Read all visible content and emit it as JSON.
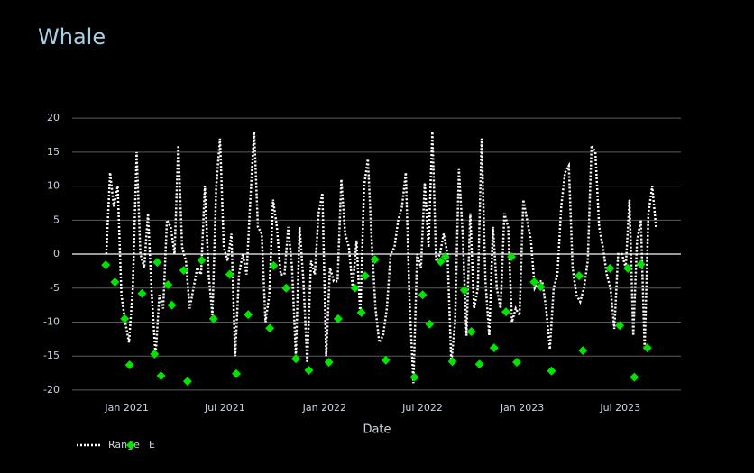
{
  "chart_data": {
    "type": "line",
    "title": "Whale",
    "x_label": "Date",
    "xlim": [
      "2020-09-22",
      "2023-10-21"
    ],
    "xticks": [
      {
        "value": "2021-01-01",
        "label": "Jan 2021"
      },
      {
        "value": "2021-07-01",
        "label": "Jul 2021"
      },
      {
        "value": "2022-01-01",
        "label": "Jan 2022"
      },
      {
        "value": "2022-07-01",
        "label": "Jul 2022"
      },
      {
        "value": "2023-01-01",
        "label": "Jan 2023"
      },
      {
        "value": "2023-07-01",
        "label": "Jul 2023"
      }
    ],
    "ylim": [
      -22,
      24
    ],
    "yticks": [
      -20,
      -15,
      -10,
      -5,
      0,
      5,
      10,
      15,
      20
    ],
    "grid": true,
    "legend": "bottom-left",
    "series": [
      {
        "name": "Range",
        "mode": "lines",
        "dash": "dot",
        "color": "#ffffff",
        "x": [
          "2020-11-24",
          "2020-12-01",
          "2020-12-08",
          "2020-12-15",
          "2020-12-22",
          "2020-12-29",
          "2021-01-05",
          "2021-01-12",
          "2021-01-19",
          "2021-01-26",
          "2021-02-02",
          "2021-02-09",
          "2021-02-16",
          "2021-02-23",
          "2021-03-02",
          "2021-03-09",
          "2021-03-16",
          "2021-03-23",
          "2021-03-30",
          "2021-04-06",
          "2021-04-13",
          "2021-04-20",
          "2021-04-27",
          "2021-05-04",
          "2021-05-11",
          "2021-05-18",
          "2021-05-25",
          "2021-06-01",
          "2021-06-08",
          "2021-06-15",
          "2021-06-22",
          "2021-06-29",
          "2021-07-06",
          "2021-07-13",
          "2021-07-20",
          "2021-07-27",
          "2021-08-03",
          "2021-08-10",
          "2021-08-17",
          "2021-08-24",
          "2021-08-31",
          "2021-09-07",
          "2021-09-14",
          "2021-09-21",
          "2021-09-28",
          "2021-10-05",
          "2021-10-12",
          "2021-10-19",
          "2021-10-26",
          "2021-11-02",
          "2021-11-09",
          "2021-11-16",
          "2021-11-23",
          "2021-11-30",
          "2021-12-07",
          "2021-12-14",
          "2021-12-21",
          "2021-12-28",
          "2022-01-04",
          "2022-01-11",
          "2022-01-18",
          "2022-01-25",
          "2022-02-01",
          "2022-02-08",
          "2022-02-15",
          "2022-02-22",
          "2022-03-01",
          "2022-03-08",
          "2022-03-15",
          "2022-03-22",
          "2022-03-29",
          "2022-04-05",
          "2022-04-12",
          "2022-04-19",
          "2022-04-26",
          "2022-05-03",
          "2022-05-10",
          "2022-05-17",
          "2022-05-24",
          "2022-05-31",
          "2022-06-07",
          "2022-06-14",
          "2022-06-21",
          "2022-06-28",
          "2022-07-05",
          "2022-07-12",
          "2022-07-19",
          "2022-07-26",
          "2022-08-02",
          "2022-08-09",
          "2022-08-16",
          "2022-08-23",
          "2022-08-30",
          "2022-09-06",
          "2022-09-13",
          "2022-09-20",
          "2022-09-27",
          "2022-10-04",
          "2022-10-11",
          "2022-10-18",
          "2022-10-25",
          "2022-11-01",
          "2022-11-08",
          "2022-11-15",
          "2022-11-22",
          "2022-11-29",
          "2022-12-06",
          "2022-12-13",
          "2022-12-20",
          "2022-12-27",
          "2023-01-03",
          "2023-01-10",
          "2023-01-17",
          "2023-01-24",
          "2023-01-31",
          "2023-02-07",
          "2023-02-14",
          "2023-02-21",
          "2023-02-28",
          "2023-03-07",
          "2023-03-14",
          "2023-03-21",
          "2023-03-28",
          "2023-04-04",
          "2023-04-11",
          "2023-04-18",
          "2023-04-25",
          "2023-05-02",
          "2023-05-09",
          "2023-05-16",
          "2023-05-23",
          "2023-05-30",
          "2023-06-06",
          "2023-06-13",
          "2023-06-20",
          "2023-06-27",
          "2023-07-04",
          "2023-07-11",
          "2023-07-18",
          "2023-07-25",
          "2023-08-01",
          "2023-08-08",
          "2023-08-15",
          "2023-08-22",
          "2023-08-29",
          "2023-09-05"
        ],
        "values": [
          0,
          12,
          7,
          10,
          -6,
          -10,
          -13,
          -5,
          15,
          0,
          -2,
          6,
          -6,
          -15,
          -6,
          -8,
          5,
          4,
          0,
          16,
          1,
          -1,
          -8,
          -5,
          -2,
          -3,
          10,
          -3,
          -9,
          10,
          17,
          1,
          -1,
          3,
          -15,
          -3,
          0,
          -3,
          8,
          18,
          4,
          3,
          -10,
          -6,
          8,
          4,
          -3,
          -3,
          4,
          -2,
          -15,
          4,
          -4,
          -16,
          -1,
          -3,
          6,
          9,
          -15,
          -2,
          -4,
          -4,
          11,
          3,
          1,
          -5,
          2,
          -9,
          10,
          14,
          2,
          -8,
          -13,
          -12,
          -8,
          0,
          1,
          5,
          7,
          12,
          -7,
          -19,
          0,
          -2,
          10.5,
          1,
          18,
          -1,
          0,
          3,
          0,
          -16,
          -10,
          12.5,
          3,
          -12,
          6,
          -8,
          -5,
          17,
          -4,
          -12,
          4,
          -5,
          -8,
          6,
          4,
          -10,
          -8,
          -9,
          8,
          5,
          2,
          -5,
          -4,
          -4,
          -8,
          -14,
          -5,
          -3,
          7,
          12,
          13,
          -2,
          -6,
          -7,
          -5,
          -1,
          16,
          15,
          4,
          1,
          -3,
          -5,
          -11,
          0,
          0,
          -2,
          8,
          -12,
          2,
          5,
          -14,
          6,
          10,
          4
        ]
      },
      {
        "name": "E",
        "mode": "markers",
        "marker": "diamond",
        "color": "#00e400",
        "x": [
          "2020-11-23",
          "2020-12-10",
          "2020-12-28",
          "2021-01-06",
          "2021-01-29",
          "2021-02-21",
          "2021-02-26",
          "2021-03-05",
          "2021-03-18",
          "2021-03-25",
          "2021-04-16",
          "2021-04-23",
          "2021-05-19",
          "2021-06-10",
          "2021-07-10",
          "2021-07-22",
          "2021-08-13",
          "2021-09-22",
          "2021-09-29",
          "2021-10-22",
          "2021-11-09",
          "2021-12-03",
          "2022-01-09",
          "2022-01-26",
          "2022-02-26",
          "2022-03-10",
          "2022-03-17",
          "2022-04-04",
          "2022-04-24",
          "2022-06-16",
          "2022-07-01",
          "2022-07-14",
          "2022-08-03",
          "2022-08-12",
          "2022-08-25",
          "2022-09-16",
          "2022-09-29",
          "2022-10-14",
          "2022-11-10",
          "2022-12-02",
          "2022-12-12",
          "2022-12-22",
          "2023-01-23",
          "2023-02-04",
          "2023-02-24",
          "2023-04-16",
          "2023-04-23",
          "2023-06-12",
          "2023-06-30",
          "2023-07-15",
          "2023-07-27",
          "2023-08-08",
          "2023-08-20"
        ],
        "values": [
          -1.6,
          -4.1,
          -9.5,
          -16.3,
          -5.8,
          -14.7,
          -1.2,
          -17.9,
          -4.5,
          -7.5,
          -2.4,
          -18.7,
          -0.9,
          -9.5,
          -3,
          -17.6,
          -8.9,
          -10.9,
          -1.7,
          -5,
          -15.4,
          -17.1,
          -15.9,
          -9.5,
          -5,
          -8.6,
          -3.2,
          -0.8,
          -15.6,
          -18.1,
          -6,
          -10.3,
          -1.1,
          -0.4,
          -15.8,
          -5.3,
          -11.4,
          -16.2,
          -13.8,
          -8.5,
          -0.4,
          -15.9,
          -4.1,
          -4.8,
          -17.2,
          -3.2,
          -14.2,
          -2.1,
          -10.5,
          -2.1,
          -18.1,
          -1.5,
          -13.8
        ]
      }
    ]
  }
}
